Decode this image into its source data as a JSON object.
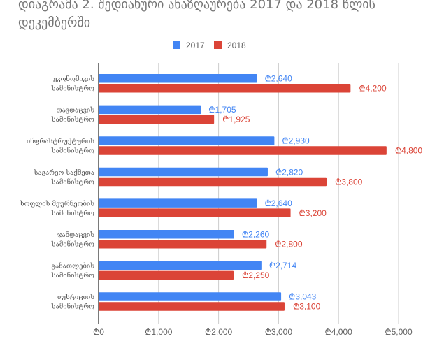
{
  "chart_data": {
    "type": "bar",
    "orientation": "horizontal",
    "title": "დიაგრამა 2. შედიახური ანაზღაურება 2017 და 2018 წლის დეკემბერში",
    "xlabel": "",
    "ylabel": "",
    "xlim": [
      0,
      5000
    ],
    "currency_symbol": "₾",
    "grid": true,
    "legend_position": "top",
    "x_ticks": [
      0,
      1000,
      2000,
      3000,
      4000,
      5000
    ],
    "x_tick_labels": [
      "₾0",
      "₾1,000",
      "₾2,000",
      "₾3,000",
      "₾4,000",
      "₾5,000"
    ],
    "categories": [
      [
        "ეკონომიკის",
        "სამინისტრო"
      ],
      [
        "თავდაცვის",
        "სამინისტრო"
      ],
      [
        "ინფრასტრუქტურის",
        "სამინისტრო"
      ],
      [
        "საგარეო საქმეთა",
        "სამინისტრო"
      ],
      [
        "სოფლის მეურნეობის",
        "სამინისტრო"
      ],
      [
        "ჯანდაცვის",
        "სამინისტრო"
      ],
      [
        "განათლების",
        "სამინისტრო"
      ],
      [
        "იუსტიციის",
        "სამინისტრო"
      ]
    ],
    "series": [
      {
        "name": "2017",
        "color": "#4285F4",
        "values": [
          2640,
          1705,
          2930,
          2820,
          2640,
          2260,
          2714,
          3043
        ],
        "labels": [
          "₾2,640",
          "₾1,705",
          "₾2,930",
          "₾2,820",
          "₾2,640",
          "₾2,260",
          "₾2,714",
          "₾3,043"
        ]
      },
      {
        "name": "2018",
        "color": "#DB4437",
        "values": [
          4200,
          1925,
          4800,
          3800,
          3200,
          2800,
          2250,
          3100
        ],
        "labels": [
          "₾4,200",
          "₾1,925",
          "₾4,800",
          "₾3,800",
          "₾3,200",
          "₾2,800",
          "₾2,250",
          "₾3,100"
        ]
      }
    ]
  }
}
